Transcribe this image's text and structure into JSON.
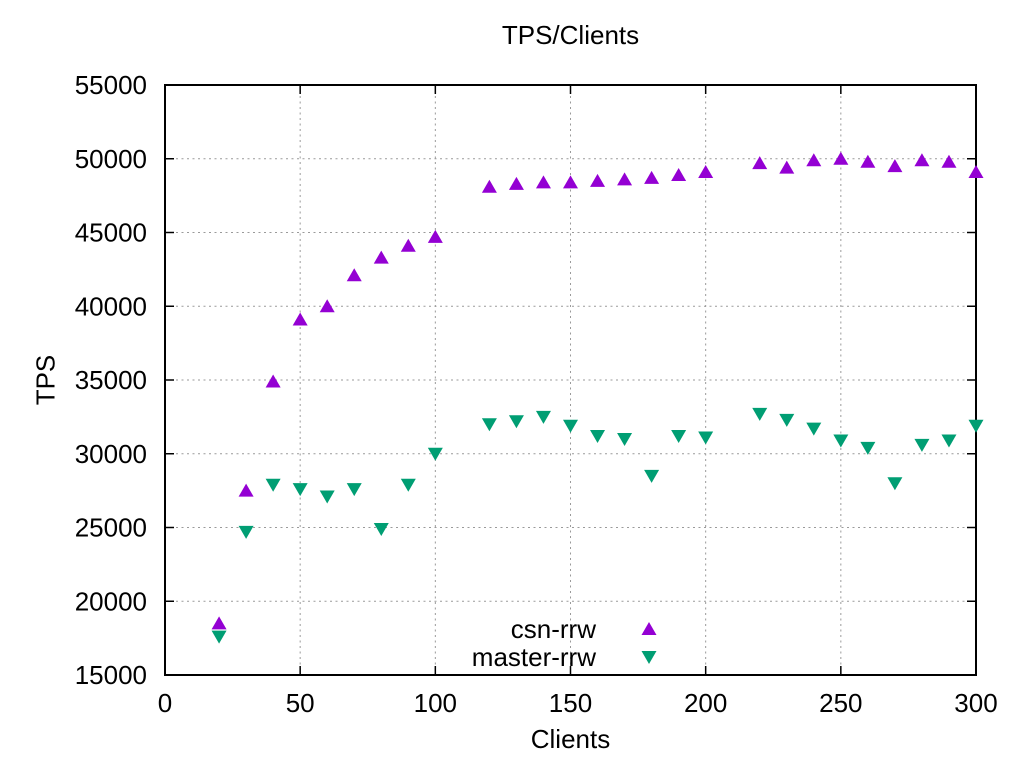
{
  "chart_data": {
    "type": "scatter",
    "title": "TPS/Clients",
    "xlabel": "Clients",
    "ylabel": "TPS",
    "xlim": [
      0,
      300
    ],
    "ylim": [
      15000,
      55000
    ],
    "xticks": [
      0,
      50,
      100,
      150,
      200,
      250,
      300
    ],
    "yticks": [
      15000,
      20000,
      25000,
      30000,
      35000,
      40000,
      45000,
      50000,
      55000
    ],
    "grid": true,
    "legend_position": "inside-bottom-center",
    "background": "#ffffff",
    "axis_color": "#000000",
    "grid_color": "#9a9a9a",
    "series": [
      {
        "name": "csn-rrw",
        "marker": "triangle-up",
        "color": "#9400d3",
        "points": [
          [
            20,
            18500
          ],
          [
            30,
            27500
          ],
          [
            40,
            34900
          ],
          [
            50,
            39100
          ],
          [
            60,
            40000
          ],
          [
            70,
            42100
          ],
          [
            80,
            43300
          ],
          [
            90,
            44100
          ],
          [
            100,
            44700
          ],
          [
            120,
            48100
          ],
          [
            130,
            48300
          ],
          [
            140,
            48400
          ],
          [
            150,
            48400
          ],
          [
            160,
            48500
          ],
          [
            170,
            48600
          ],
          [
            180,
            48700
          ],
          [
            190,
            48900
          ],
          [
            200,
            49100
          ],
          [
            220,
            49700
          ],
          [
            230,
            49400
          ],
          [
            240,
            49900
          ],
          [
            250,
            50000
          ],
          [
            260,
            49800
          ],
          [
            270,
            49500
          ],
          [
            280,
            49900
          ],
          [
            290,
            49800
          ],
          [
            300,
            49100
          ]
        ]
      },
      {
        "name": "master-rrw",
        "marker": "triangle-down",
        "color": "#009e73",
        "points": [
          [
            20,
            17600
          ],
          [
            30,
            24700
          ],
          [
            40,
            27900
          ],
          [
            50,
            27600
          ],
          [
            60,
            27100
          ],
          [
            70,
            27600
          ],
          [
            80,
            24900
          ],
          [
            90,
            27900
          ],
          [
            100,
            30000
          ],
          [
            120,
            32000
          ],
          [
            130,
            32200
          ],
          [
            140,
            32500
          ],
          [
            150,
            31900
          ],
          [
            160,
            31200
          ],
          [
            170,
            31000
          ],
          [
            180,
            28500
          ],
          [
            190,
            31200
          ],
          [
            200,
            31100
          ],
          [
            220,
            32700
          ],
          [
            230,
            32300
          ],
          [
            240,
            31700
          ],
          [
            250,
            30900
          ],
          [
            260,
            30400
          ],
          [
            270,
            28000
          ],
          [
            280,
            30600
          ],
          [
            290,
            30900
          ],
          [
            300,
            31900
          ]
        ]
      }
    ]
  }
}
